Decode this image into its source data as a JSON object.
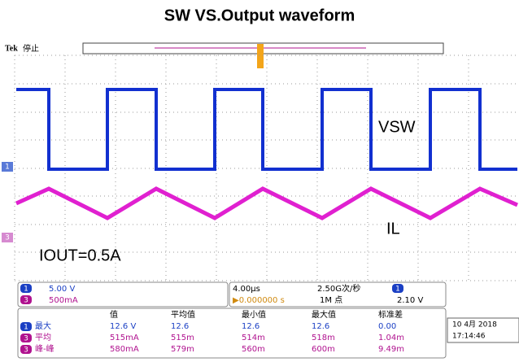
{
  "title": "SW VS.Output waveform",
  "header": {
    "brand": "Tek",
    "status": "停止"
  },
  "labels": {
    "vsw": "VSW",
    "il": "IL",
    "iout": "IOUT=0.5A",
    "ch1_marker": "1",
    "ch3_marker": "3"
  },
  "settings": {
    "ch1": "1",
    "ch1_scale": "5.00 V",
    "ch3": "3",
    "ch3_scale": "500mA",
    "timebase": "4.00µs",
    "trigger_pos": "▶0.000000 s",
    "sample_rate": "2.50G次/秒",
    "points": "1M 点",
    "trig_ch": "1",
    "trig_level": "2.10 V"
  },
  "measurements": {
    "columns": [
      "值",
      "平均值",
      "最小值",
      "最大值",
      "标准差"
    ],
    "rows": [
      {
        "ch": "1",
        "name": "最大",
        "cells": [
          "12.6 V",
          "12.6",
          "12.6",
          "12.6",
          "0.00"
        ]
      },
      {
        "ch": "3",
        "name": "平均",
        "cells": [
          "515mA",
          "515m",
          "514m",
          "518m",
          "1.04m"
        ]
      },
      {
        "ch": "3",
        "name": "峰-峰",
        "cells": [
          "580mA",
          "579m",
          "560m",
          "600m",
          "9.49m"
        ]
      }
    ]
  },
  "datetime": {
    "date": "10 4月 2018",
    "time": "17:14:46"
  }
}
